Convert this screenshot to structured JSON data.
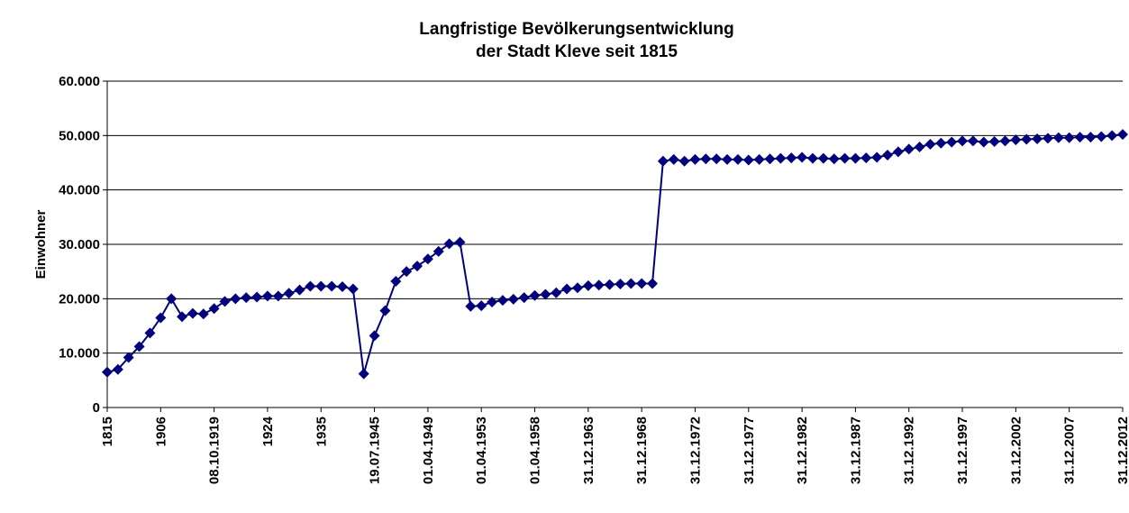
{
  "chart_data": {
    "type": "line",
    "title": [
      "Langfristige Bevölkerungsentwicklung",
      "der Stadt Kleve seit 1815"
    ],
    "y_axis_label": "Einwohner",
    "categories": [
      "1815",
      null,
      null,
      null,
      null,
      "1906",
      null,
      null,
      null,
      null,
      "08.10.1919",
      null,
      null,
      null,
      null,
      "1924",
      null,
      null,
      null,
      null,
      "1935",
      null,
      null,
      null,
      null,
      "19.07.1945",
      null,
      null,
      null,
      null,
      "01.04.1949",
      null,
      null,
      null,
      null,
      "01.04.1953",
      null,
      null,
      null,
      null,
      "01.04.1958",
      null,
      null,
      null,
      null,
      "31.12.1963",
      null,
      null,
      null,
      null,
      "31.12.1968",
      null,
      null,
      null,
      null,
      "31.12.1972",
      null,
      null,
      null,
      null,
      "31.12.1977",
      null,
      null,
      null,
      null,
      "31.12.1982",
      null,
      null,
      null,
      null,
      "31.12.1987",
      null,
      null,
      null,
      null,
      "31.12.1992",
      null,
      null,
      null,
      null,
      "31.12.1997",
      null,
      null,
      null,
      null,
      "31.12.2002",
      null,
      null,
      null,
      null,
      "31.12.2007",
      null,
      null,
      null,
      null,
      "31.12.2012"
    ],
    "series": [
      {
        "name": "Einwohner",
        "color": "#000080",
        "values": [
          6500,
          7000,
          9200,
          11200,
          13700,
          16500,
          20000,
          16700,
          17300,
          17200,
          18200,
          19500,
          20000,
          20200,
          20300,
          20500,
          20500,
          21000,
          21600,
          22300,
          22300,
          22300,
          22200,
          21800,
          6200,
          13200,
          17800,
          23200,
          25000,
          26000,
          27300,
          28700,
          30100,
          30400,
          18600,
          18700,
          19400,
          19700,
          19900,
          20200,
          20600,
          20800,
          21100,
          21800,
          22000,
          22400,
          22500,
          22600,
          22700,
          22800,
          22800,
          22800,
          45300,
          45600,
          45300,
          45600,
          45700,
          45700,
          45600,
          45600,
          45500,
          45600,
          45700,
          45800,
          45900,
          46000,
          45800,
          45800,
          45700,
          45800,
          45800,
          45900,
          46000,
          46400,
          47000,
          47500,
          47900,
          48400,
          48600,
          48800,
          49000,
          49000,
          48800,
          48900,
          49000,
          49200,
          49300,
          49400,
          49500,
          49600,
          49600,
          49700,
          49700,
          49800,
          50000,
          50200
        ]
      }
    ],
    "ylim": [
      0,
      60000
    ],
    "yticks": [
      0,
      {
        "value": 10000,
        "label": "10.000"
      },
      {
        "value": 20000,
        "label": "20.000"
      },
      {
        "value": 30000,
        "label": "30.000"
      },
      {
        "value": 40000,
        "label": "40.000"
      },
      {
        "value": 50000,
        "label": "50.000"
      },
      {
        "value": 60000,
        "label": "60.000"
      }
    ],
    "grid": true
  }
}
